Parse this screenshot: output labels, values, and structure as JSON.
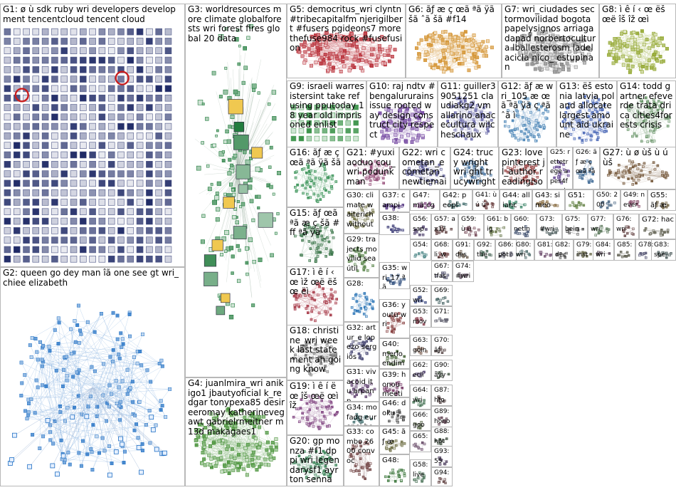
{
  "graph": {
    "background": "#ffffff",
    "panel_border": "#b8b8b8",
    "groups": [
      {
        "id": "G1",
        "label": "G1: ø ù sdk ruby wri developers development tencentcloud tencent cloud",
        "style": "grid",
        "color": "#1f2a66"
      },
      {
        "id": "G2",
        "label": "G2: queen go dey man îã one see gt wri_chiee elizabeth",
        "style": "cluster",
        "color": "#1f6fc4"
      },
      {
        "id": "G3",
        "label": "G3: worldresources more climate globalforests wri forest fires global 20 data",
        "style": "star",
        "color": "#1e7a3a"
      },
      {
        "id": "G4",
        "label": "G4: juanlmira_wri anikigo1 jbautyoficial k_redgar tonypexa85 desireeromay katherinevegawt gabrielrmeitner m13d makagaes1",
        "style": "cluster",
        "color": "#3a8a2a"
      },
      {
        "id": "G5",
        "label": "G5: democritus_wri clyntn #tribecapitalfm njerigilbert #fusers pgideons7 more thefuse984 rock #fusefusion",
        "style": "cluster",
        "color": "#b3202a"
      },
      {
        "id": "G6",
        "label": "G6: ãƒ æ ç œã ªã ÿã šã ˆã šã #f14",
        "style": "cluster",
        "color": "#d08a20"
      },
      {
        "id": "G7",
        "label": "G7: wri_ciudades sectormovilidad bogota papelysignos arriagadapad norbertocultura lballesterosm ladelacicla nico_ estupinan",
        "style": "cluster",
        "color": "#7a7a7a"
      },
      {
        "id": "G8",
        "label": "G8: ì ê í ‹ œ ëš œë îš îž œì",
        "style": "cluster",
        "color": "#8aa020"
      },
      {
        "id": "G9",
        "label": "G9: israeli warresistersint take refusing pputoday 18 year old imprisoned enlist",
        "style": "grid",
        "color": "#2a8a3a"
      },
      {
        "id": "G10",
        "label": "G10: raj ndtv #bengalururains issue rooted way design construct city respect",
        "style": "cluster",
        "color": "#6a3a9a"
      },
      {
        "id": "G11",
        "label": "G11: guiller39051251 claudiakg2 vmallarino anacecultura wilcheschaux",
        "style": "cluster",
        "color": "#5a5aa0"
      },
      {
        "id": "G12",
        "label": "G12: ãƒ æ wri_105 æ œã ªã ÿã ç ªã ˆã ì",
        "style": "cluster",
        "color": "#3a7ab0"
      },
      {
        "id": "G13",
        "label": "G13: ëš estonia latvia poland allocate largest amount aid ukraine",
        "style": "cluster",
        "color": "#3a5ab0"
      },
      {
        "id": "G14",
        "label": "G14: todd gartner efeverde trata drica cities4forests crisis",
        "style": "cluster",
        "color": "#5a8a5a"
      },
      {
        "id": "G15",
        "label": "G15: ãƒ œã ªã æ ç šã #ff ªã ÿã",
        "style": "cluster",
        "color": "#2a6a3a"
      },
      {
        "id": "G16",
        "label": "G16: ãƒ æ ç œã ªã ÿã šã",
        "style": "cluster",
        "color": "#2a8a4a"
      },
      {
        "id": "G17",
        "label": "G17: ì ê í ‹ œ ìž œë ëš œ ëì",
        "style": "cluster",
        "color": "#a02a3a"
      },
      {
        "id": "G18",
        "label": "G18: christine_wri week last statement ah going know",
        "style": "cluster",
        "color": "#6a6a6a"
      },
      {
        "id": "G19",
        "label": "G19: ì ê í ë œ îš œë œì îž",
        "style": "cluster",
        "color": "#7a3a7a"
      },
      {
        "id": "G20",
        "label": "G20: gp monza #f1 dppi wri legendarysf1 ayrton senna",
        "style": "cluster",
        "color": "#2a7a4a"
      },
      {
        "id": "G21",
        "label": "G21: #yuxiaoduo cou_wri podunkman",
        "style": "cluster",
        "color": "#8a3a6a"
      },
      {
        "id": "G22",
        "label": "G22: wri cometan_e cometan_ newtiemain",
        "style": "cluster",
        "color": "#4a4a8a"
      },
      {
        "id": "G23",
        "label": "G23: love pinterest jl_author readingiso",
        "style": "cluster",
        "color": "#8a2a2a"
      },
      {
        "id": "G24",
        "label": "G24: trucy wright wri ght trucywright",
        "style": "cluster",
        "color": "#3a6a9a"
      },
      {
        "id": "G25",
        "label": "G25: rettetrege apes4forest najiskeie",
        "style": "cluster",
        "color": "#5a3a8a"
      },
      {
        "id": "G26",
        "label": "G26: ãƒ æ ç œã ªã",
        "style": "cluster",
        "color": "#2a5a8a"
      },
      {
        "id": "G27",
        "label": "G27: ù ø ùš ù ú ùš",
        "style": "cluster",
        "color": "#6a4a2a"
      },
      {
        "id": "G28",
        "label": "G28:",
        "style": "cluster",
        "color": "#1a6ab0"
      },
      {
        "id": "G29",
        "label": "G29: trajects movilid sea útil",
        "style": "cluster",
        "color": "#4a7a3a"
      },
      {
        "id": "G30",
        "label": "G30: climate waiterich without",
        "style": "cluster",
        "color": "#6a6a3a"
      },
      {
        "id": "G31",
        "label": "G31: vivacoid itu arpanp",
        "style": "cluster",
        "color": "#5a3a6a"
      },
      {
        "id": "G32",
        "label": "G32: artur_e lopezo sergios",
        "style": "cluster",
        "color": "#3a3a6a"
      },
      {
        "id": "G33",
        "label": "G33: combo 2600 convoc",
        "style": "cluster",
        "color": "#6a3a3a"
      },
      {
        "id": "G34",
        "label": "G34: mofadg europei henmp",
        "style": "cluster",
        "color": "#3a6a6a"
      },
      {
        "id": "G35",
        "label": "G35: wri_17 ªã",
        "style": "cluster",
        "color": "#2a4a7a"
      },
      {
        "id": "G36",
        "label": "G36: youtu wri",
        "style": "cluster",
        "color": "#7a2a2a"
      },
      {
        "id": "G37",
        "label": "G37: campi webin",
        "style": "cluster",
        "color": "#4a2a7a"
      },
      {
        "id": "G38",
        "label": "G38:",
        "style": "cluster",
        "color": "#2a2a6a"
      },
      {
        "id": "G39",
        "label": "G39: honou meeti",
        "style": "cluster",
        "color": "#6a2a5a"
      },
      {
        "id": "G40",
        "label": "G40: merlo endim",
        "style": "cluster",
        "color": "#3a5a2a"
      },
      {
        "id": "G41",
        "label": "G41: ù ú ùˆ",
        "style": "cluster",
        "color": "#5a2a2a"
      },
      {
        "id": "G42",
        "label": "G42: peopl",
        "style": "cluster",
        "color": "#2a5a5a"
      },
      {
        "id": "G43",
        "label": "G43: simeo",
        "style": "cluster",
        "color": "#7a5a2a"
      },
      {
        "id": "G44",
        "label": "G44: allianc",
        "style": "cluster",
        "color": "#2a7a5a"
      },
      {
        "id": "G45",
        "label": "G45: ãƒ æ",
        "style": "cluster",
        "color": "#5a5a2a"
      },
      {
        "id": "G46",
        "label": "G46: doku",
        "style": "cluster",
        "color": "#3a3a3a"
      },
      {
        "id": "G47",
        "label": "G47: mã cg",
        "style": "cluster",
        "color": "#6a2a6a"
      },
      {
        "id": "G48",
        "label": "G48:",
        "style": "cluster",
        "color": "#2a6a2a"
      },
      {
        "id": "G49",
        "label": "G49: never",
        "style": "cluster",
        "color": "#7a3a5a"
      },
      {
        "id": "G50",
        "label": "G50: 200",
        "style": "cluster",
        "color": "#3a5a7a"
      },
      {
        "id": "G51",
        "label": "G51:",
        "style": "cluster",
        "color": "#5a7a3a"
      },
      {
        "id": "G52",
        "label": "G52: wri",
        "style": "cluster",
        "color": "#2a3a7a"
      },
      {
        "id": "G53",
        "label": "G53: mov",
        "style": "cluster",
        "color": "#7a2a3a"
      },
      {
        "id": "G54",
        "label": "G54:",
        "style": "cluster",
        "color": "#3a7a7a"
      },
      {
        "id": "G55",
        "label": "G55: ãƒ æ",
        "style": "cluster",
        "color": "#6a5a3a"
      },
      {
        "id": "G56",
        "label": "G56: sap",
        "style": "cluster",
        "color": "#3a2a5a"
      },
      {
        "id": "G57",
        "label": "G57: ax17",
        "style": "cluster",
        "color": "#5a3a3a"
      },
      {
        "id": "G58",
        "label": "G58: live",
        "style": "cluster",
        "color": "#2a5a3a"
      },
      {
        "id": "G59",
        "label": "G59: ù ú",
        "style": "cluster",
        "color": "#6a3a4a"
      },
      {
        "id": "G60",
        "label": "G60: netin",
        "style": "cluster",
        "color": "#3a4a6a"
      },
      {
        "id": "G61",
        "label": "G61: big",
        "style": "cluster",
        "color": "#5a6a3a"
      },
      {
        "id": "G62",
        "label": "G62: ecli",
        "style": "cluster",
        "color": "#4a3a6a"
      },
      {
        "id": "G63",
        "label": "G63: goin",
        "style": "cluster",
        "color": "#6a4a3a"
      },
      {
        "id": "G64",
        "label": "G64: wri",
        "style": "cluster",
        "color": "#3a6a4a"
      },
      {
        "id": "G65",
        "label": "G65:",
        "style": "cluster",
        "color": "#5a3a5a"
      },
      {
        "id": "G66",
        "label": "G66: goo",
        "style": "cluster",
        "color": "#4a5a3a"
      },
      {
        "id": "G67",
        "label": "G67: tfas",
        "style": "cluster",
        "color": "#3a3a5a"
      },
      {
        "id": "G68",
        "label": "G68: li_w",
        "style": "cluster",
        "color": "#6a3a3a"
      },
      {
        "id": "G69",
        "label": "G69:",
        "style": "cluster",
        "color": "#3a5a5a"
      },
      {
        "id": "G70",
        "label": "G70: ãƒ",
        "style": "cluster",
        "color": "#5a4a4a"
      },
      {
        "id": "G71",
        "label": "G71:",
        "style": "cluster",
        "color": "#4a4a5a"
      },
      {
        "id": "G72",
        "label": "G72: hac",
        "style": "cluster",
        "color": "#5a5a4a"
      },
      {
        "id": "G73",
        "label": "G73: #wri",
        "style": "cluster",
        "color": "#4a5a5a"
      },
      {
        "id": "G74",
        "label": "G74: #wri",
        "style": "cluster",
        "color": "#5a4a5a"
      },
      {
        "id": "G75",
        "label": "G75: bein",
        "style": "cluster",
        "color": "#4a4a4a"
      },
      {
        "id": "G76",
        "label": "G76: wri",
        "style": "cluster",
        "color": "#6a4a4a"
      },
      {
        "id": "G77",
        "label": "G77: wri",
        "style": "cluster",
        "color": "#4a6a4a"
      },
      {
        "id": "G78",
        "label": "G78:",
        "style": "cluster",
        "color": "#4a4a6a"
      },
      {
        "id": "G79",
        "label": "G79: inst",
        "style": "cluster",
        "color": "#6a6a4a"
      },
      {
        "id": "G80",
        "label": "G80: wri",
        "style": "cluster",
        "color": "#4a6a6a"
      },
      {
        "id": "G81",
        "label": "G81:",
        "style": "cluster",
        "color": "#6a4a6a"
      },
      {
        "id": "G82",
        "label": "G82: dec",
        "style": "cluster",
        "color": "#5a5a5a"
      },
      {
        "id": "G83",
        "label": "G83: spe",
        "style": "cluster",
        "color": "#3a4a4a"
      },
      {
        "id": "G84",
        "label": "G84: wri",
        "style": "cluster",
        "color": "#4a3a4a"
      },
      {
        "id": "G85",
        "label": "G85:",
        "style": "cluster",
        "color": "#4a4a3a"
      },
      {
        "id": "G86",
        "label": "G86: pot",
        "style": "cluster",
        "color": "#3a3a4a"
      },
      {
        "id": "G87",
        "label": "G87: hto",
        "style": "cluster",
        "color": "#4a3a3a"
      },
      {
        "id": "G88",
        "label": "G88: hot",
        "style": "cluster",
        "color": "#3a4a3a"
      },
      {
        "id": "G89",
        "label": "G89: honou",
        "style": "cluster",
        "color": "#5a3a4a"
      },
      {
        "id": "G90",
        "label": "G90: åÿy",
        "style": "cluster",
        "color": "#4a5a4a"
      },
      {
        "id": "G91",
        "label": "G91: des",
        "style": "cluster",
        "color": "#5a4a3a"
      },
      {
        "id": "G92",
        "label": "G92: the",
        "style": "cluster",
        "color": "#3a5a4a"
      },
      {
        "id": "G93",
        "label": "G93: 55",
        "style": "cluster",
        "color": "#4a3a5a"
      },
      {
        "id": "G94",
        "label": "G94:",
        "style": "cluster",
        "color": "#5a3a3a"
      }
    ]
  }
}
